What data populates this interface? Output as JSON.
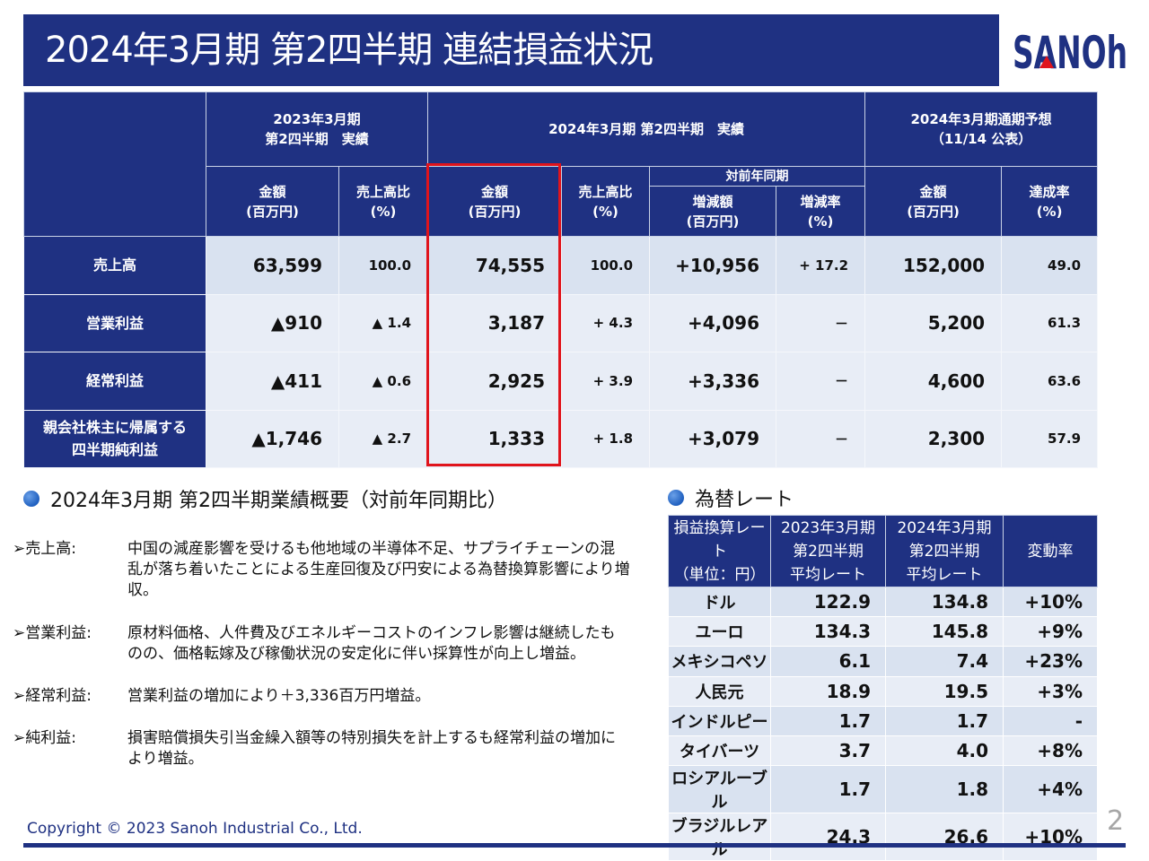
{
  "title": "2024年3月期 第2四半期 連結損益状況",
  "logo_text": "SANOh",
  "main_table": {
    "group_headers": [
      "2023年3月期\n第2四半期　実績",
      "2024年3月期 第2四半期　実績",
      "2024年3月期通期予想\n（11/14 公表）"
    ],
    "yoy_header": "対前年同期",
    "sub_headers": [
      "金額\n(百万円)",
      "売上高比\n(%)",
      "金額\n(百万円)",
      "売上高比\n(%)",
      "増減額\n(百万円)",
      "増減率\n(%)",
      "金額\n(百万円)",
      "達成率\n(%)"
    ],
    "rows": [
      {
        "label": "売上高",
        "values": [
          "63,599",
          "100.0",
          "74,555",
          "100.0",
          "+10,956",
          "+ 17.2",
          "152,000",
          "49.0"
        ]
      },
      {
        "label": "営業利益",
        "values": [
          "▲910",
          "▲ 1.4",
          "3,187",
          "+ 4.3",
          "+4,096",
          "－",
          "5,200",
          "61.3"
        ]
      },
      {
        "label": "経常利益",
        "values": [
          "▲411",
          "▲ 0.6",
          "2,925",
          "+ 3.9",
          "+3,336",
          "－",
          "4,600",
          "63.6"
        ]
      },
      {
        "label": "親会社株主に帰属する\n四半期純利益",
        "values": [
          "▲1,746",
          "▲ 2.7",
          "1,333",
          "+ 1.8",
          "+3,079",
          "－",
          "2,300",
          "57.9"
        ]
      }
    ]
  },
  "summary": {
    "heading": "2024年3月期 第2四半期業績概要（対前年同期比）",
    "items": [
      {
        "key": "➢売上高:",
        "text": "中国の減産影響を受けるも他地域の半導体不足、サプライチェーンの混乱が落ち着いたことによる生産回復及び円安による為替換算影響により増収。"
      },
      {
        "key": "➢営業利益:",
        "text": "原材料価格、人件費及びエネルギーコストのインフレ影響は継続したものの、価格転嫁及び稼働状況の安定化に伴い採算性が向上し増益。"
      },
      {
        "key": "➢経常利益:",
        "text": "営業利益の増加により＋3,336百万円増益。"
      },
      {
        "key": "➢純利益:",
        "text": "損害賠償損失引当金繰入額等の特別損失を計上するも経常利益の増加により増益。"
      }
    ]
  },
  "rates": {
    "heading": "為替レート",
    "headers": [
      "損益換算レート\n（単位：円）",
      "2023年3月期\n第2四半期\n平均レート",
      "2024年3月期\n第2四半期\n平均レート",
      "変動率"
    ],
    "rows": [
      [
        "ドル",
        "122.9",
        "134.8",
        "+10%"
      ],
      [
        "ユーロ",
        "134.3",
        "145.8",
        "+9%"
      ],
      [
        "メキシコペソ",
        "6.1",
        "7.4",
        "+23%"
      ],
      [
        "人民元",
        "18.9",
        "19.5",
        "+3%"
      ],
      [
        "インドルピー",
        "1.7",
        "1.7",
        "-"
      ],
      [
        "タイバーツ",
        "3.7",
        "4.0",
        "+8%"
      ],
      [
        "ロシアルーブル",
        "1.7",
        "1.8",
        "+4%"
      ],
      [
        "ブラジルレアル",
        "24.3",
        "26.6",
        "+10%"
      ]
    ]
  },
  "footer": {
    "copyright": "Copyright © 2023 Sanoh Industrial Co., Ltd.",
    "page": "2"
  },
  "colors": {
    "navy": "#1f3182",
    "highlight": "#e0141c"
  }
}
